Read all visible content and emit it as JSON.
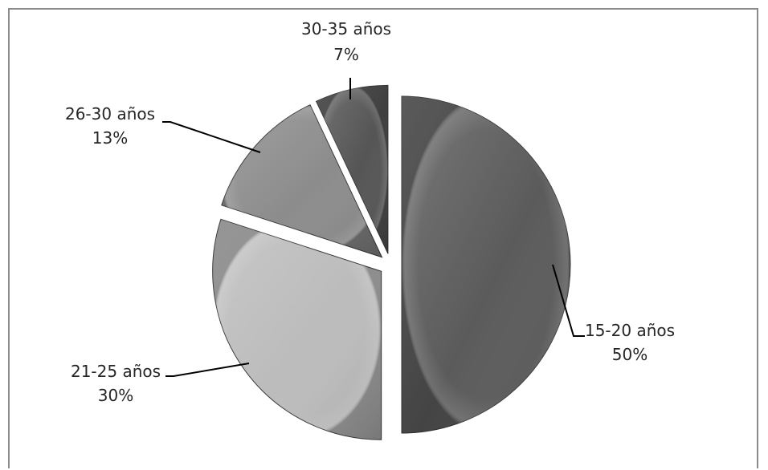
{
  "chart_data": {
    "type": "pie",
    "title": "",
    "slices": [
      {
        "label": "15-20 años",
        "percent_label": "50%",
        "value": 50,
        "color": "#5b5b5b"
      },
      {
        "label": "21-25 años",
        "percent_label": "30%",
        "value": 30,
        "color": "#bcbcbc"
      },
      {
        "label": "26-30 años",
        "percent_label": "13%",
        "value": 13,
        "color": "#8c8c8c"
      },
      {
        "label": "30-35 años",
        "percent_label": "7%",
        "value": 7,
        "color": "#555555"
      }
    ],
    "exploded": true,
    "style": "3d-bevel grayscale",
    "legend": "none (data labels with leader lines)"
  }
}
